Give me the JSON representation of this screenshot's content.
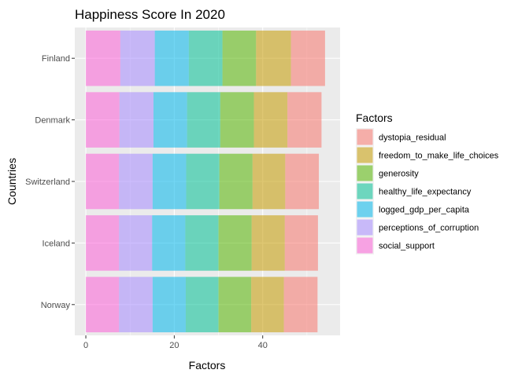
{
  "chart_data": {
    "type": "bar",
    "orientation": "horizontal",
    "stacked": true,
    "title": "Happiness Score In 2020",
    "xlabel": "Factors",
    "ylabel": "Countries",
    "xlim": [
      -2.5,
      57.5
    ],
    "x_ticks": [
      0,
      20,
      40
    ],
    "categories": [
      "Finland",
      "Denmark",
      "Switzerland",
      "Iceland",
      "Norway"
    ],
    "stack_order": [
      "social_support",
      "perceptions_of_corruption",
      "logged_gdp_per_capita",
      "healthy_life_expectancy",
      "generosity",
      "freedom_to_make_life_choices",
      "dystopia_residual"
    ],
    "series": [
      {
        "name": "dystopia_residual",
        "color": "#F8766D",
        "values": [
          7.7,
          7.7,
          7.6,
          7.5,
          7.6
        ]
      },
      {
        "name": "freedom_to_make_life_choices",
        "color": "#C49A00",
        "values": [
          7.9,
          7.6,
          7.4,
          7.5,
          7.4
        ]
      },
      {
        "name": "generosity",
        "color": "#53B400",
        "values": [
          7.6,
          7.6,
          7.5,
          7.5,
          7.4
        ]
      },
      {
        "name": "healthy_life_expectancy",
        "color": "#00C094",
        "values": [
          7.6,
          7.5,
          7.5,
          7.5,
          7.4
        ]
      },
      {
        "name": "logged_gdp_per_capita",
        "color": "#00B6EB",
        "values": [
          7.7,
          7.6,
          7.6,
          7.5,
          7.5
        ]
      },
      {
        "name": "perceptions_of_corruption",
        "color": "#A58AFF",
        "values": [
          7.8,
          7.7,
          7.6,
          7.5,
          7.6
        ]
      },
      {
        "name": "social_support",
        "color": "#FB61D7",
        "values": [
          7.8,
          7.6,
          7.5,
          7.5,
          7.5
        ]
      }
    ],
    "legend_title": "Factors",
    "legend_position": "right",
    "grid": true,
    "panel_background": "#EBEBEB"
  }
}
